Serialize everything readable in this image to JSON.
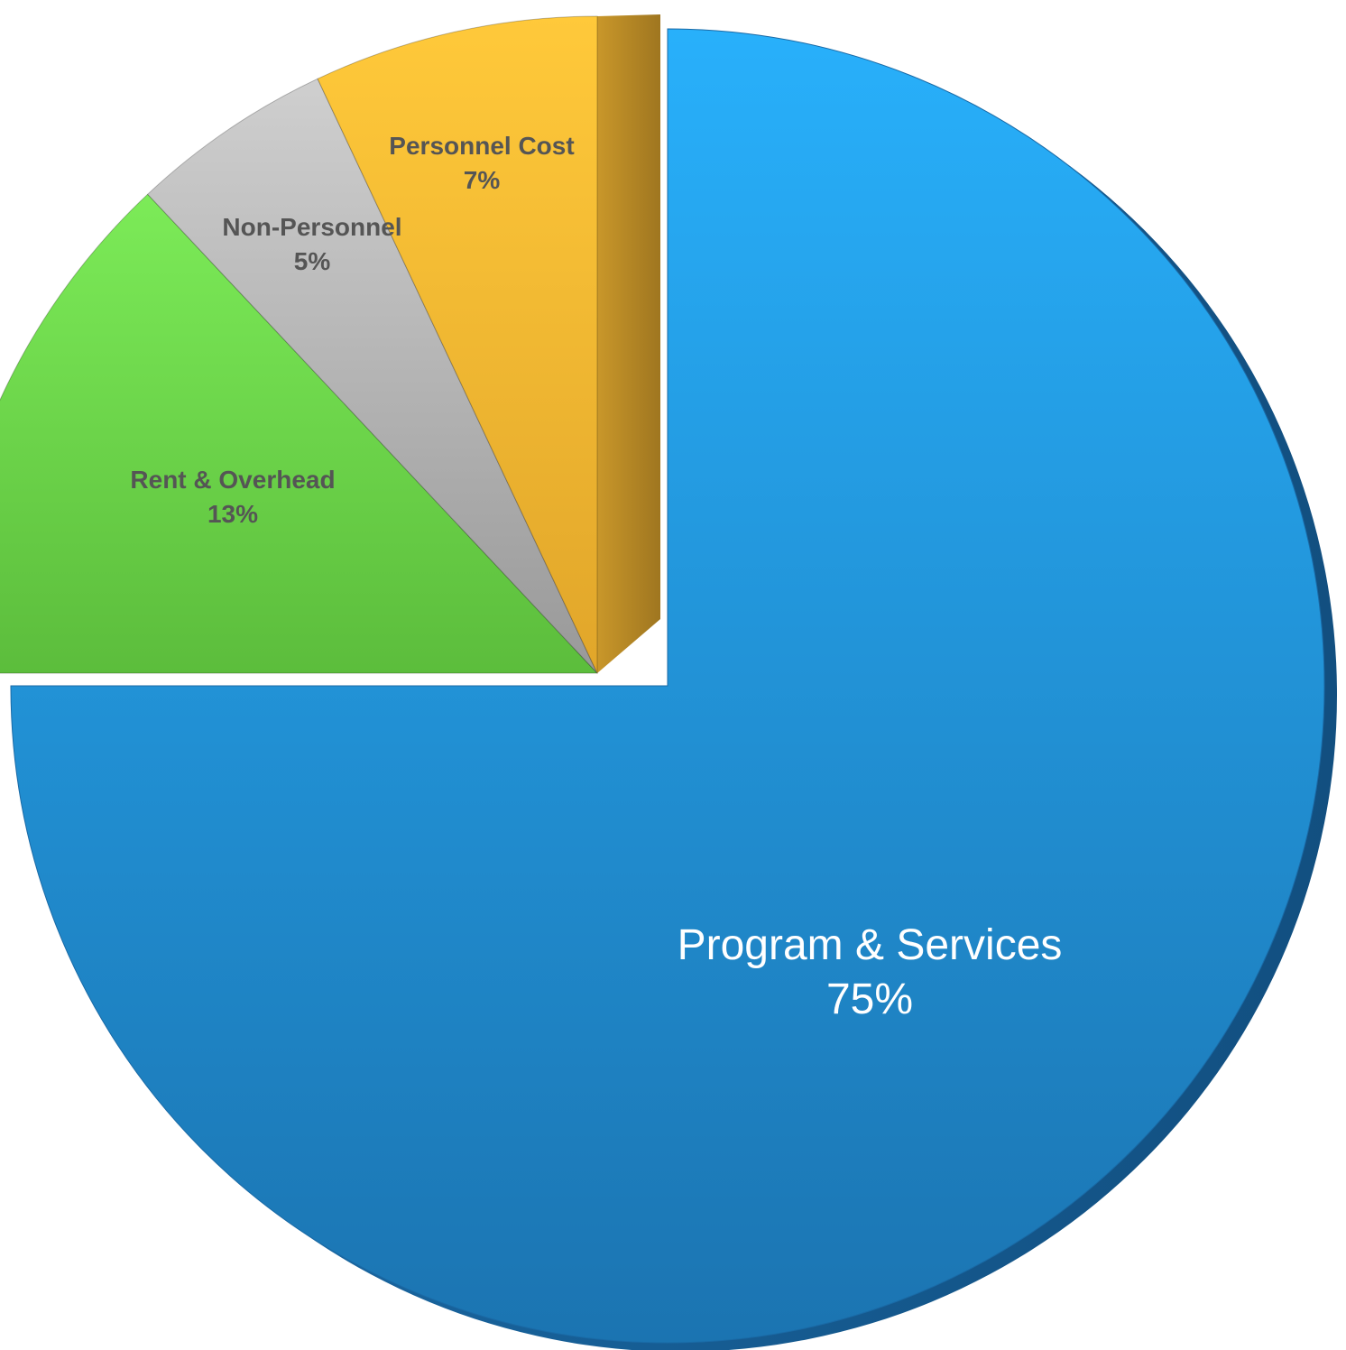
{
  "chart_data": {
    "type": "pie",
    "title": "",
    "slices": [
      {
        "label": "Program & Services",
        "value": 75,
        "value_label": "75%",
        "color": "#1f93dc",
        "exploded": false
      },
      {
        "label": "Rent & Overhead",
        "value": 13,
        "value_label": "13%",
        "color": "#6dd64a",
        "exploded": true
      },
      {
        "label": "Non-Personnel",
        "value": 5,
        "value_label": "5%",
        "color": "#b4b4b4",
        "exploded": true
      },
      {
        "label": "Personnel Cost",
        "value": 7,
        "value_label": "7%",
        "color": "#f6b92c",
        "exploded": true
      }
    ],
    "legend": "none"
  }
}
